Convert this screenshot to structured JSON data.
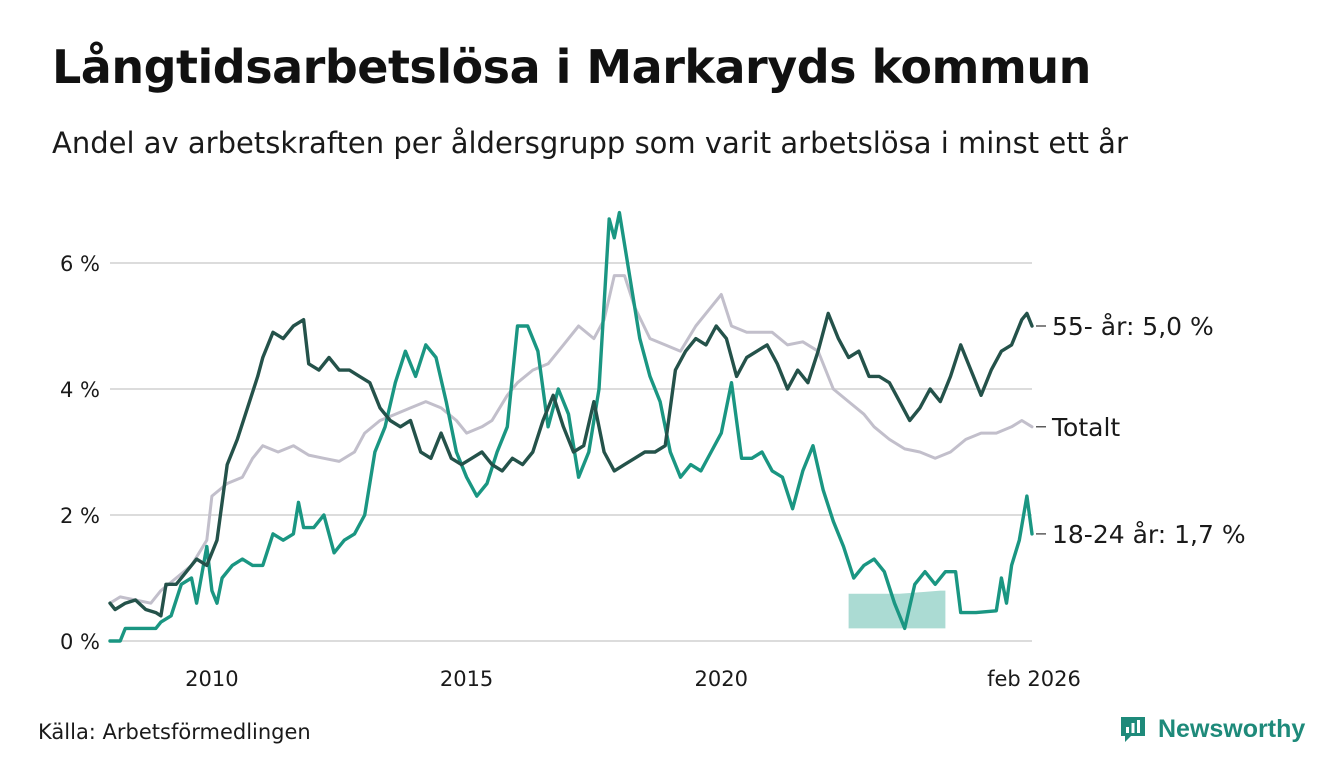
{
  "title": "Långtidsarbetslösa i Markaryds kommun",
  "subtitle": "Andel av arbetskraften per åldersgrupp som varit arbetslösa i minst ett år",
  "source": "Källa: Arbetsförmedlingen",
  "brand": "Newsworthy",
  "colors": {
    "young": "#1a9682",
    "old": "#24524a",
    "total": "#c2bfcb",
    "band": "#a6d9d1",
    "grid": "#dcdcdc",
    "brand": "#1e8a7a"
  },
  "chart_data": {
    "type": "line",
    "title": "Långtidsarbetslösa i Markaryds kommun",
    "ylabel": "",
    "xlabel": "",
    "x_range": [
      2008.0,
      2026.1
    ],
    "ylim": [
      0,
      7
    ],
    "yticks": [
      {
        "value": 0,
        "label": "0 %"
      },
      {
        "value": 2,
        "label": "2 %"
      },
      {
        "value": 4,
        "label": "4 %"
      },
      {
        "value": 6,
        "label": "6 %"
      }
    ],
    "xticks": [
      {
        "value": 2010,
        "label": "2010"
      },
      {
        "value": 2015,
        "label": "2015"
      },
      {
        "value": 2020,
        "label": "2020"
      },
      {
        "value": 2026.1,
        "label": "feb 2026"
      }
    ],
    "grid": true,
    "uncertainty_band": {
      "series": "18-24 år",
      "x": [
        2022.5,
        2023.0,
        2023.5,
        2024.0,
        2024.3,
        2024.4
      ],
      "low": [
        0.2,
        0.2,
        0.2,
        0.2,
        0.2,
        0.2
      ],
      "high": [
        0.75,
        0.75,
        0.75,
        0.78,
        0.8,
        0.8
      ]
    },
    "series": [
      {
        "name": "Totalt",
        "label": "Totalt",
        "color_key": "total",
        "points": [
          [
            2008.0,
            0.6
          ],
          [
            2008.2,
            0.7
          ],
          [
            2008.5,
            0.65
          ],
          [
            2008.8,
            0.6
          ],
          [
            2009.0,
            0.8
          ],
          [
            2009.3,
            1.0
          ],
          [
            2009.6,
            1.2
          ],
          [
            2009.9,
            1.6
          ],
          [
            2010.0,
            2.3
          ],
          [
            2010.3,
            2.5
          ],
          [
            2010.6,
            2.6
          ],
          [
            2010.8,
            2.9
          ],
          [
            2011.0,
            3.1
          ],
          [
            2011.3,
            3.0
          ],
          [
            2011.6,
            3.1
          ],
          [
            2011.9,
            2.95
          ],
          [
            2012.2,
            2.9
          ],
          [
            2012.5,
            2.85
          ],
          [
            2012.8,
            3.0
          ],
          [
            2013.0,
            3.3
          ],
          [
            2013.3,
            3.5
          ],
          [
            2013.6,
            3.6
          ],
          [
            2013.9,
            3.7
          ],
          [
            2014.2,
            3.8
          ],
          [
            2014.5,
            3.7
          ],
          [
            2014.8,
            3.5
          ],
          [
            2015.0,
            3.3
          ],
          [
            2015.3,
            3.4
          ],
          [
            2015.5,
            3.5
          ],
          [
            2015.8,
            3.9
          ],
          [
            2016.0,
            4.1
          ],
          [
            2016.3,
            4.3
          ],
          [
            2016.6,
            4.4
          ],
          [
            2016.9,
            4.7
          ],
          [
            2017.2,
            5.0
          ],
          [
            2017.5,
            4.8
          ],
          [
            2017.7,
            5.1
          ],
          [
            2017.9,
            5.8
          ],
          [
            2018.1,
            5.8
          ],
          [
            2018.3,
            5.3
          ],
          [
            2018.6,
            4.8
          ],
          [
            2018.9,
            4.7
          ],
          [
            2019.2,
            4.6
          ],
          [
            2019.5,
            5.0
          ],
          [
            2019.8,
            5.3
          ],
          [
            2020.0,
            5.5
          ],
          [
            2020.2,
            5.0
          ],
          [
            2020.5,
            4.9
          ],
          [
            2020.8,
            4.9
          ],
          [
            2021.0,
            4.9
          ],
          [
            2021.3,
            4.7
          ],
          [
            2021.6,
            4.75
          ],
          [
            2021.9,
            4.6
          ],
          [
            2022.2,
            4.0
          ],
          [
            2022.5,
            3.8
          ],
          [
            2022.8,
            3.6
          ],
          [
            2023.0,
            3.4
          ],
          [
            2023.3,
            3.2
          ],
          [
            2023.6,
            3.05
          ],
          [
            2023.9,
            3.0
          ],
          [
            2024.2,
            2.9
          ],
          [
            2024.5,
            3.0
          ],
          [
            2024.8,
            3.2
          ],
          [
            2025.1,
            3.3
          ],
          [
            2025.4,
            3.3
          ],
          [
            2025.7,
            3.4
          ],
          [
            2025.9,
            3.5
          ],
          [
            2026.1,
            3.4
          ]
        ]
      },
      {
        "name": "18-24 år",
        "label": "18-24 år: 1,7 %",
        "color_key": "young",
        "points": [
          [
            2008.0,
            0.0
          ],
          [
            2008.2,
            0.0
          ],
          [
            2008.3,
            0.2
          ],
          [
            2008.6,
            0.2
          ],
          [
            2008.9,
            0.2
          ],
          [
            2009.0,
            0.3
          ],
          [
            2009.2,
            0.4
          ],
          [
            2009.4,
            0.9
          ],
          [
            2009.6,
            1.0
          ],
          [
            2009.7,
            0.6
          ],
          [
            2009.9,
            1.5
          ],
          [
            2010.0,
            0.8
          ],
          [
            2010.1,
            0.6
          ],
          [
            2010.2,
            1.0
          ],
          [
            2010.4,
            1.2
          ],
          [
            2010.6,
            1.3
          ],
          [
            2010.8,
            1.2
          ],
          [
            2011.0,
            1.2
          ],
          [
            2011.2,
            1.7
          ],
          [
            2011.4,
            1.6
          ],
          [
            2011.6,
            1.7
          ],
          [
            2011.7,
            2.2
          ],
          [
            2011.8,
            1.8
          ],
          [
            2012.0,
            1.8
          ],
          [
            2012.2,
            2.0
          ],
          [
            2012.4,
            1.4
          ],
          [
            2012.6,
            1.6
          ],
          [
            2012.8,
            1.7
          ],
          [
            2013.0,
            2.0
          ],
          [
            2013.2,
            3.0
          ],
          [
            2013.4,
            3.4
          ],
          [
            2013.6,
            4.1
          ],
          [
            2013.8,
            4.6
          ],
          [
            2014.0,
            4.2
          ],
          [
            2014.2,
            4.7
          ],
          [
            2014.4,
            4.5
          ],
          [
            2014.6,
            3.8
          ],
          [
            2014.8,
            3.0
          ],
          [
            2015.0,
            2.6
          ],
          [
            2015.2,
            2.3
          ],
          [
            2015.4,
            2.5
          ],
          [
            2015.6,
            3.0
          ],
          [
            2015.8,
            3.4
          ],
          [
            2016.0,
            5.0
          ],
          [
            2016.2,
            5.0
          ],
          [
            2016.4,
            4.6
          ],
          [
            2016.6,
            3.4
          ],
          [
            2016.8,
            4.0
          ],
          [
            2017.0,
            3.6
          ],
          [
            2017.2,
            2.6
          ],
          [
            2017.4,
            3.0
          ],
          [
            2017.6,
            4.0
          ],
          [
            2017.8,
            6.7
          ],
          [
            2017.9,
            6.4
          ],
          [
            2018.0,
            6.8
          ],
          [
            2018.2,
            5.8
          ],
          [
            2018.4,
            4.8
          ],
          [
            2018.6,
            4.2
          ],
          [
            2018.8,
            3.8
          ],
          [
            2019.0,
            3.0
          ],
          [
            2019.2,
            2.6
          ],
          [
            2019.4,
            2.8
          ],
          [
            2019.6,
            2.7
          ],
          [
            2019.8,
            3.0
          ],
          [
            2020.0,
            3.3
          ],
          [
            2020.2,
            4.1
          ],
          [
            2020.4,
            2.9
          ],
          [
            2020.6,
            2.9
          ],
          [
            2020.8,
            3.0
          ],
          [
            2021.0,
            2.7
          ],
          [
            2021.2,
            2.6
          ],
          [
            2021.4,
            2.1
          ],
          [
            2021.6,
            2.7
          ],
          [
            2021.8,
            3.1
          ],
          [
            2022.0,
            2.4
          ],
          [
            2022.2,
            1.9
          ],
          [
            2022.4,
            1.5
          ],
          [
            2022.6,
            1.0
          ],
          [
            2022.8,
            1.2
          ],
          [
            2023.0,
            1.3
          ],
          [
            2023.2,
            1.1
          ],
          [
            2023.4,
            0.6
          ],
          [
            2023.6,
            0.2
          ],
          [
            2023.8,
            0.9
          ],
          [
            2024.0,
            1.1
          ],
          [
            2024.2,
            0.9
          ],
          [
            2024.4,
            1.1
          ],
          [
            2024.6,
            1.1
          ],
          [
            2024.7,
            0.45
          ],
          [
            2025.0,
            0.45
          ],
          [
            2025.4,
            0.48
          ],
          [
            2025.5,
            1.0
          ],
          [
            2025.6,
            0.6
          ],
          [
            2025.7,
            1.2
          ],
          [
            2025.85,
            1.6
          ],
          [
            2026.0,
            2.3
          ],
          [
            2026.1,
            1.7
          ]
        ]
      },
      {
        "name": "55- år",
        "label": "55- år: 5,0 %",
        "color_key": "old",
        "points": [
          [
            2008.0,
            0.6
          ],
          [
            2008.1,
            0.5
          ],
          [
            2008.3,
            0.6
          ],
          [
            2008.5,
            0.65
          ],
          [
            2008.7,
            0.5
          ],
          [
            2008.9,
            0.45
          ],
          [
            2009.0,
            0.4
          ],
          [
            2009.1,
            0.9
          ],
          [
            2009.3,
            0.9
          ],
          [
            2009.5,
            1.1
          ],
          [
            2009.7,
            1.3
          ],
          [
            2009.9,
            1.2
          ],
          [
            2010.1,
            1.6
          ],
          [
            2010.3,
            2.8
          ],
          [
            2010.5,
            3.2
          ],
          [
            2010.7,
            3.7
          ],
          [
            2010.9,
            4.2
          ],
          [
            2011.0,
            4.5
          ],
          [
            2011.2,
            4.9
          ],
          [
            2011.4,
            4.8
          ],
          [
            2011.6,
            5.0
          ],
          [
            2011.8,
            5.1
          ],
          [
            2011.9,
            4.4
          ],
          [
            2012.1,
            4.3
          ],
          [
            2012.3,
            4.5
          ],
          [
            2012.5,
            4.3
          ],
          [
            2012.7,
            4.3
          ],
          [
            2012.9,
            4.2
          ],
          [
            2013.1,
            4.1
          ],
          [
            2013.3,
            3.7
          ],
          [
            2013.5,
            3.5
          ],
          [
            2013.7,
            3.4
          ],
          [
            2013.9,
            3.5
          ],
          [
            2014.1,
            3.0
          ],
          [
            2014.3,
            2.9
          ],
          [
            2014.5,
            3.3
          ],
          [
            2014.7,
            2.9
          ],
          [
            2014.9,
            2.8
          ],
          [
            2015.1,
            2.9
          ],
          [
            2015.3,
            3.0
          ],
          [
            2015.5,
            2.8
          ],
          [
            2015.7,
            2.7
          ],
          [
            2015.9,
            2.9
          ],
          [
            2016.1,
            2.8
          ],
          [
            2016.3,
            3.0
          ],
          [
            2016.5,
            3.5
          ],
          [
            2016.7,
            3.9
          ],
          [
            2016.9,
            3.4
          ],
          [
            2017.1,
            3.0
          ],
          [
            2017.3,
            3.1
          ],
          [
            2017.5,
            3.8
          ],
          [
            2017.7,
            3.0
          ],
          [
            2017.9,
            2.7
          ],
          [
            2018.1,
            2.8
          ],
          [
            2018.3,
            2.9
          ],
          [
            2018.5,
            3.0
          ],
          [
            2018.7,
            3.0
          ],
          [
            2018.9,
            3.1
          ],
          [
            2019.1,
            4.3
          ],
          [
            2019.3,
            4.6
          ],
          [
            2019.5,
            4.8
          ],
          [
            2019.7,
            4.7
          ],
          [
            2019.9,
            5.0
          ],
          [
            2020.1,
            4.8
          ],
          [
            2020.3,
            4.2
          ],
          [
            2020.5,
            4.5
          ],
          [
            2020.7,
            4.6
          ],
          [
            2020.9,
            4.7
          ],
          [
            2021.1,
            4.4
          ],
          [
            2021.3,
            4.0
          ],
          [
            2021.5,
            4.3
          ],
          [
            2021.7,
            4.1
          ],
          [
            2021.9,
            4.6
          ],
          [
            2022.1,
            5.2
          ],
          [
            2022.3,
            4.8
          ],
          [
            2022.5,
            4.5
          ],
          [
            2022.7,
            4.6
          ],
          [
            2022.9,
            4.2
          ],
          [
            2023.1,
            4.2
          ],
          [
            2023.3,
            4.1
          ],
          [
            2023.5,
            3.8
          ],
          [
            2023.7,
            3.5
          ],
          [
            2023.9,
            3.7
          ],
          [
            2024.1,
            4.0
          ],
          [
            2024.3,
            3.8
          ],
          [
            2024.5,
            4.2
          ],
          [
            2024.7,
            4.7
          ],
          [
            2024.9,
            4.3
          ],
          [
            2025.1,
            3.9
          ],
          [
            2025.3,
            4.3
          ],
          [
            2025.5,
            4.6
          ],
          [
            2025.7,
            4.7
          ],
          [
            2025.9,
            5.1
          ],
          [
            2026.0,
            5.2
          ],
          [
            2026.1,
            5.0
          ]
        ]
      }
    ]
  }
}
